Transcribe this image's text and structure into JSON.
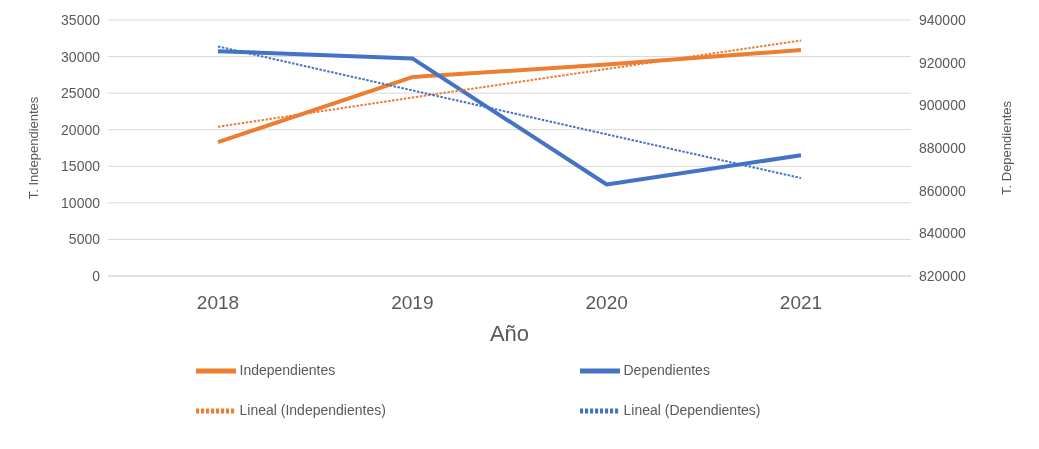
{
  "chart_data": {
    "type": "line",
    "xlabel": "Año",
    "ylabel": "T. Independientes",
    "y2label": "T. Dependientes",
    "categories": [
      "2018",
      "2019",
      "2020",
      "2021"
    ],
    "series": [
      {
        "name": "Independientes",
        "color": "#ed7d31",
        "values": [
          18300,
          27200,
          28900,
          30900
        ]
      },
      {
        "name": "Dependientes",
        "color": "#4472c4",
        "axis": "y2",
        "values": [
          925400,
          922000,
          862900,
          876600
        ]
      },
      {
        "name": "Lineal (Independientes)",
        "color": "#ed7d31",
        "line_style": "dotted",
        "values": [
          20400,
          24400,
          28300,
          32200
        ]
      },
      {
        "name": "Lineal (Dependientes)",
        "color": "#4472c4",
        "line_style": "dotted",
        "axis": "y2",
        "values": [
          927600,
          907000,
          886400,
          865900
        ]
      }
    ],
    "ylim": [
      0,
      35000
    ],
    "yticks": [
      0,
      5000,
      10000,
      15000,
      20000,
      25000,
      30000,
      35000
    ],
    "y2lim": [
      820000,
      940000
    ],
    "y2ticks": [
      820000,
      840000,
      860000,
      880000,
      900000,
      920000,
      940000
    ],
    "grid": "y",
    "legend": "bottom",
    "marker": "none"
  }
}
